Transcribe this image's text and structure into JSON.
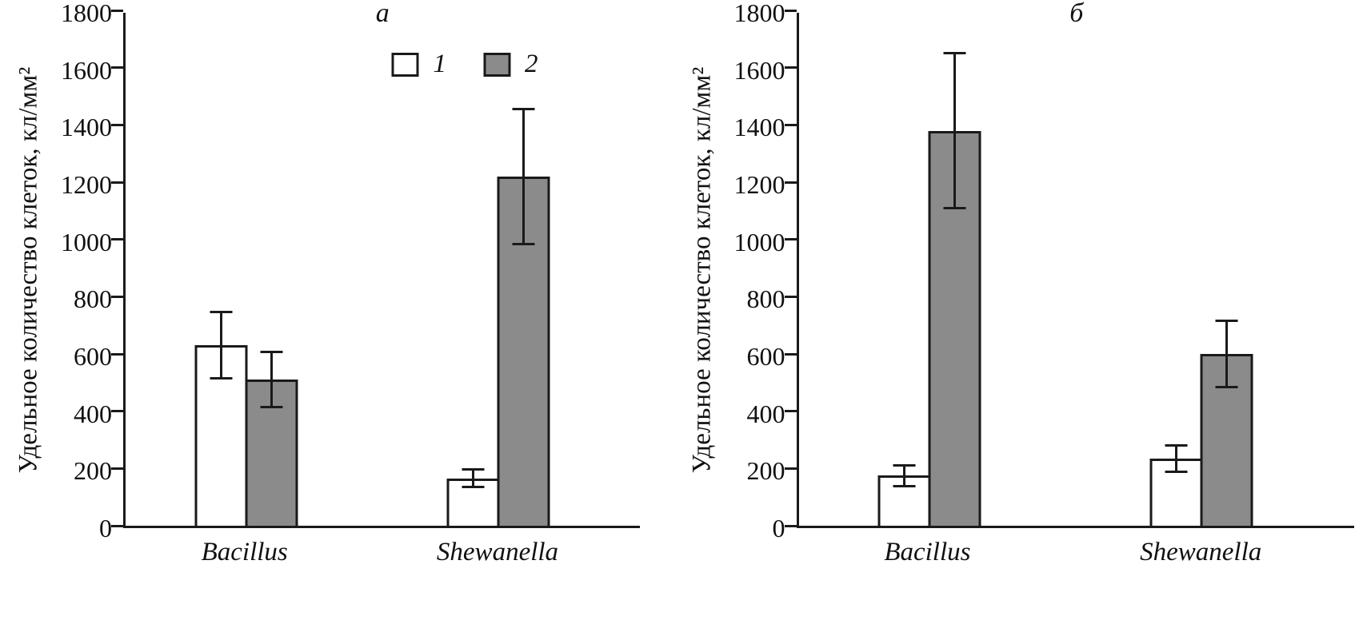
{
  "figure": {
    "background": "#ffffff",
    "axis_color": "#1a1a1a"
  },
  "chart_data": [
    {
      "type": "bar",
      "panel_label": "а",
      "title": "",
      "ylabel": "Удельное количество клеток, кл/мм²",
      "xlabel": "",
      "ylim": [
        0,
        1800
      ],
      "ytick_step": 200,
      "grid": false,
      "categories": [
        "Bacillus",
        "Shewanella"
      ],
      "series": [
        {
          "name": "1",
          "color": "#ffffff",
          "values": [
            630,
            165
          ],
          "errors": [
            120,
            35
          ]
        },
        {
          "name": "2",
          "color": "#8b8b8b",
          "values": [
            510,
            1220
          ],
          "errors": [
            100,
            240
          ]
        }
      ],
      "legend": {
        "show": true,
        "entries": [
          "1",
          "2"
        ],
        "position": "top-center"
      }
    },
    {
      "type": "bar",
      "panel_label": "б",
      "title": "",
      "ylabel": "Удельное количество клеток, кл/мм²",
      "xlabel": "",
      "ylim": [
        0,
        1800
      ],
      "ytick_step": 200,
      "grid": false,
      "categories": [
        "Bacillus",
        "Shewanella"
      ],
      "series": [
        {
          "name": "1",
          "color": "#ffffff",
          "values": [
            175,
            235
          ],
          "errors": [
            40,
            50
          ]
        },
        {
          "name": "2",
          "color": "#8b8b8b",
          "values": [
            1380,
            600
          ],
          "errors": [
            275,
            120
          ]
        }
      ],
      "legend": {
        "show": false,
        "entries": [
          "1",
          "2"
        ],
        "position": "top-center"
      }
    }
  ]
}
